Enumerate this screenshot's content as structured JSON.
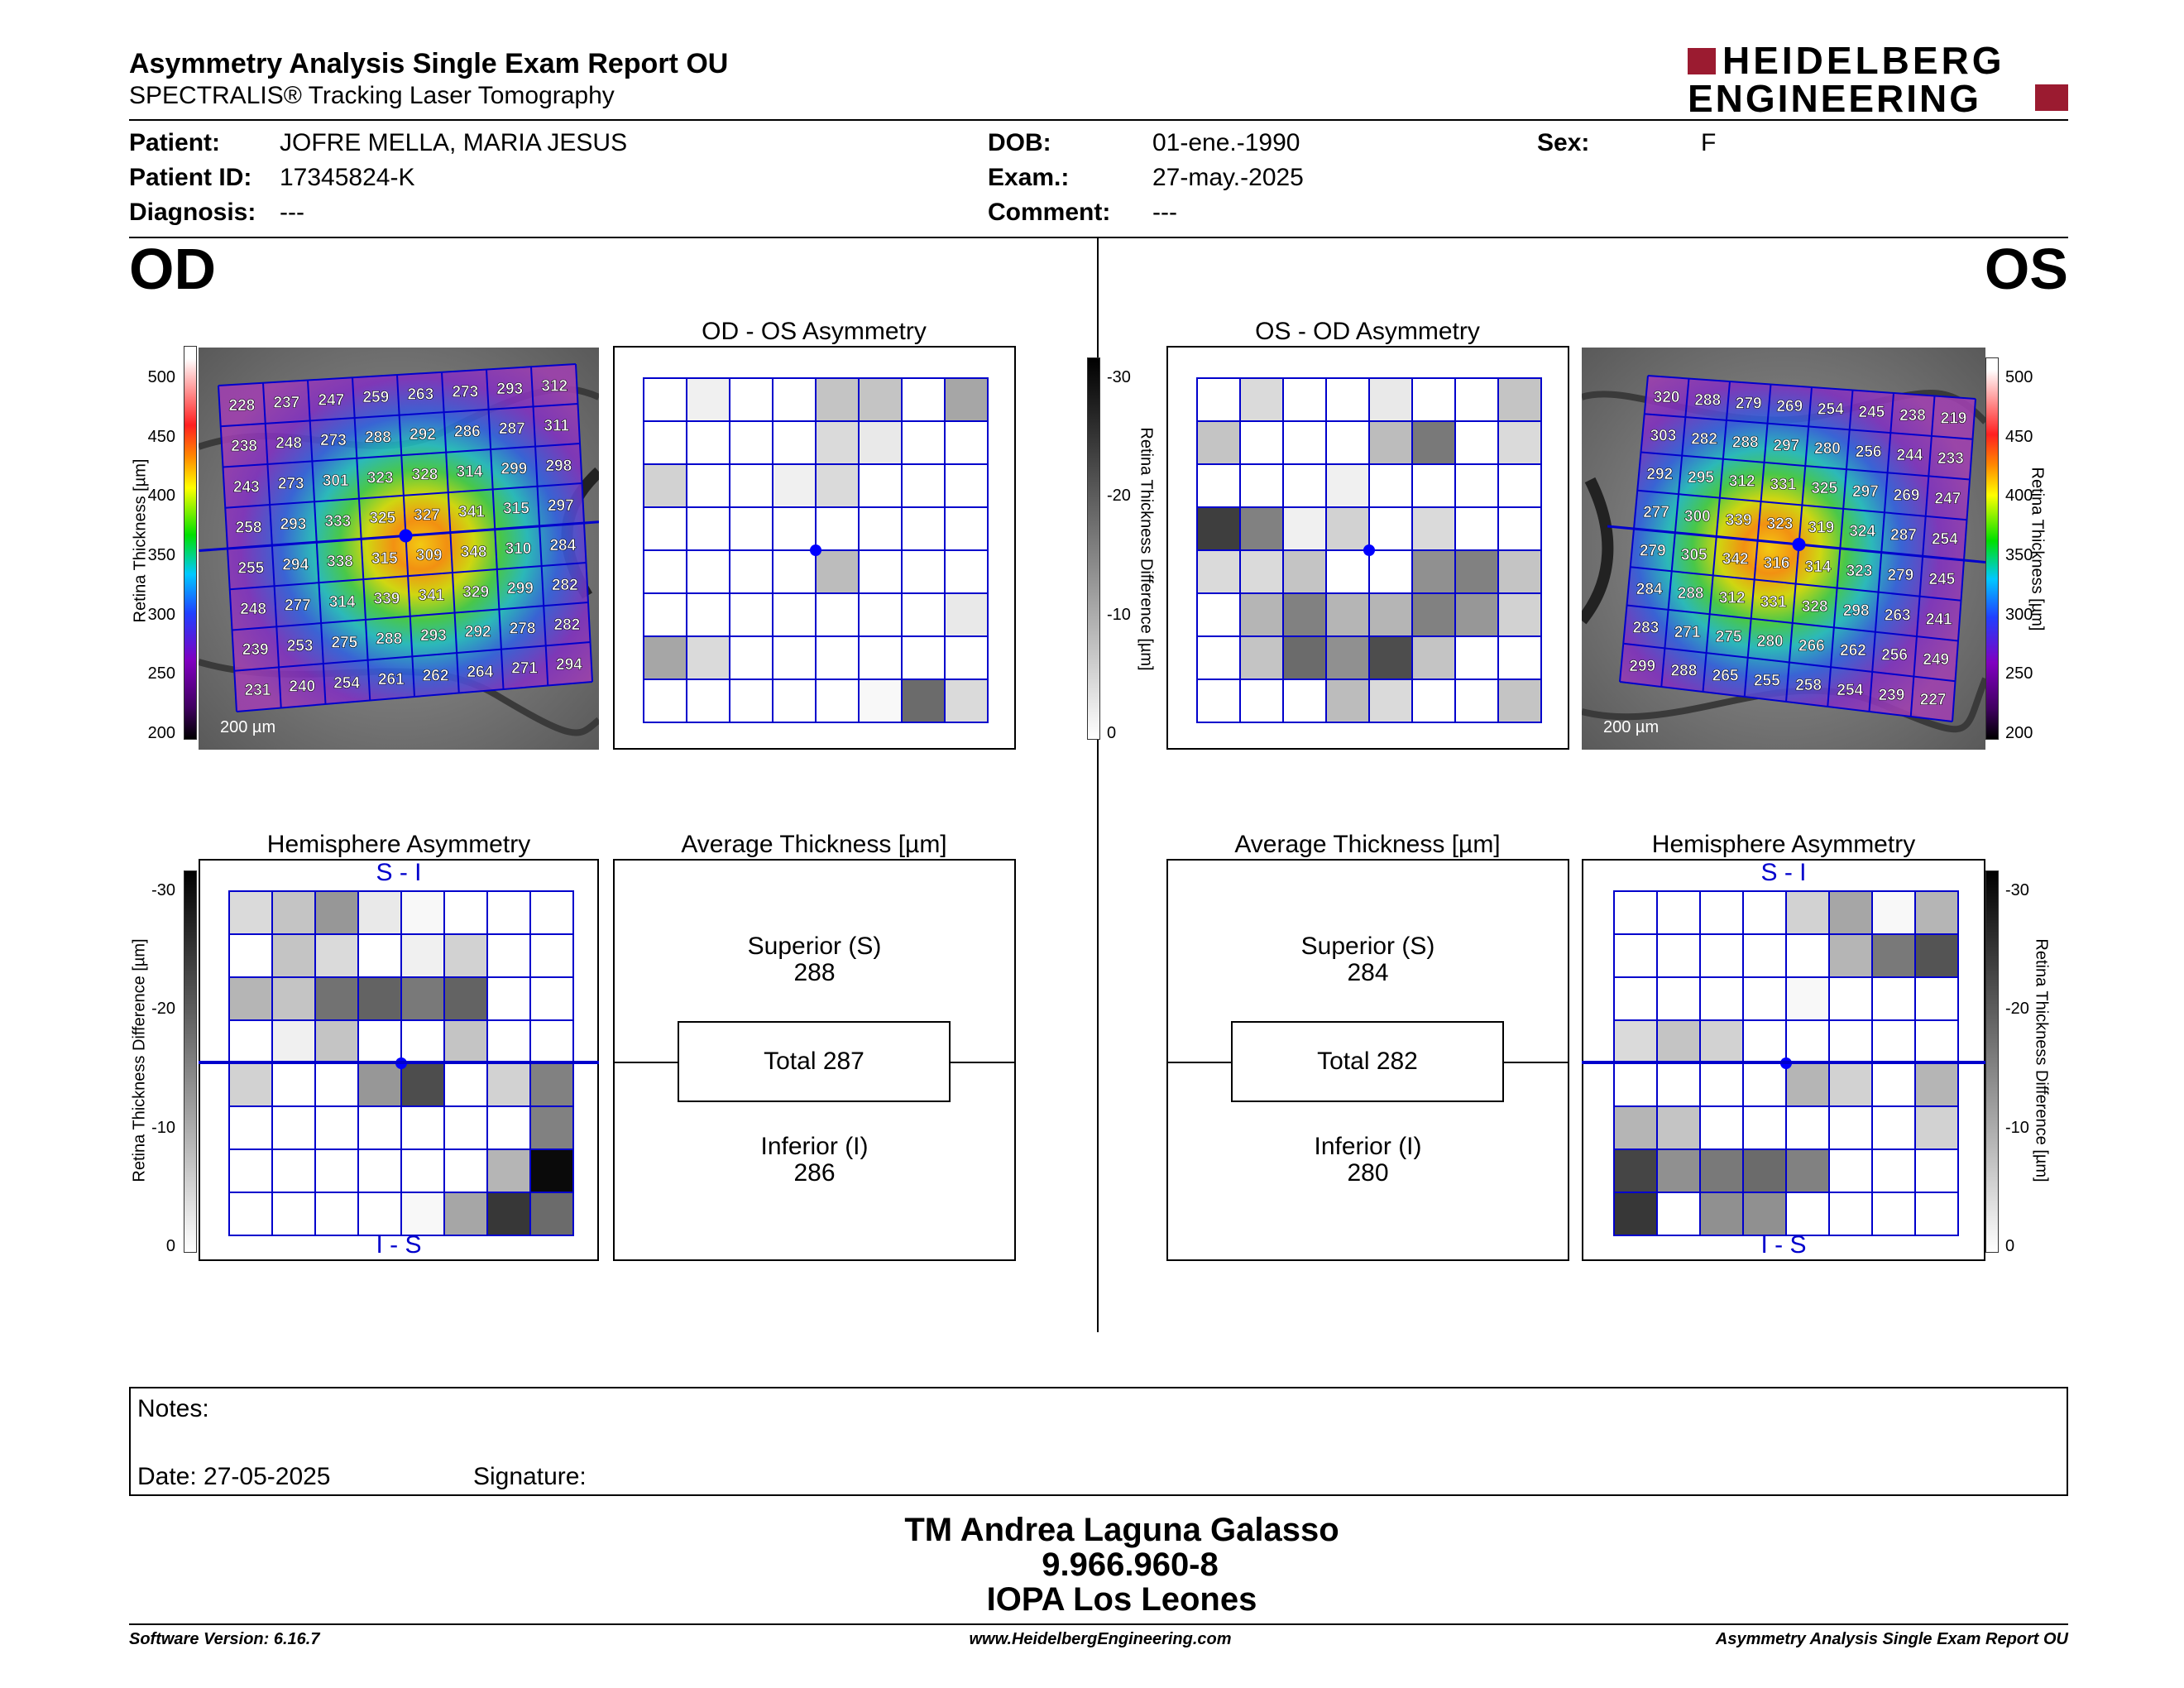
{
  "header": {
    "title": "Asymmetry Analysis Single Exam Report OU",
    "subtitle": "SPECTRALIS® Tracking Laser Tomography",
    "logo_line1": "HEIDELBERG",
    "logo_line2": "ENGINEERING",
    "logo_color": "#9b1b30"
  },
  "patient": {
    "patient_label": "Patient:",
    "patient_value": "JOFRE MELLA, MARIA JESUS",
    "id_label": "Patient ID:",
    "id_value": "17345824-K",
    "diagnosis_label": "Diagnosis:",
    "diagnosis_value": "---",
    "dob_label": "DOB:",
    "dob_value": "01-ene.-1990",
    "exam_label": "Exam.:",
    "exam_value": "27-may.-2025",
    "comment_label": "Comment:",
    "comment_value": "---",
    "sex_label": "Sex:",
    "sex_value": "F"
  },
  "od": {
    "eye_label": "OD",
    "asym_title": "OD - OS Asymmetry",
    "hemi_title": "Hemisphere Asymmetry",
    "avg_title": "Average Thickness [µm]",
    "superior_label": "Superior (S)",
    "superior_value": "288",
    "total_label": "Total 287",
    "inferior_label": "Inferior (I)",
    "inferior_value": "286",
    "scale_label": "200 µm",
    "thickness_grid": [
      [
        228,
        237,
        247,
        259,
        263,
        273,
        293,
        312
      ],
      [
        238,
        248,
        273,
        288,
        292,
        286,
        287,
        311
      ],
      [
        243,
        273,
        301,
        323,
        328,
        314,
        299,
        298
      ],
      [
        258,
        293,
        333,
        325,
        327,
        341,
        315,
        297
      ],
      [
        255,
        294,
        338,
        315,
        309,
        348,
        310,
        284
      ],
      [
        248,
        277,
        314,
        339,
        341,
        329,
        299,
        282
      ],
      [
        239,
        253,
        275,
        288,
        293,
        292,
        278,
        282
      ],
      [
        231,
        240,
        254,
        261,
        262,
        264,
        271,
        294
      ]
    ],
    "asym_grid": [
      [
        0,
        2,
        0,
        0,
        8,
        8,
        0,
        12
      ],
      [
        0,
        0,
        0,
        0,
        5,
        3,
        0,
        0
      ],
      [
        6,
        0,
        0,
        2,
        5,
        0,
        0,
        0
      ],
      [
        0,
        0,
        0,
        0,
        0,
        0,
        0,
        0
      ],
      [
        0,
        0,
        0,
        0,
        9,
        0,
        0,
        0
      ],
      [
        0,
        0,
        0,
        0,
        0,
        0,
        0,
        3
      ],
      [
        12,
        5,
        0,
        0,
        0,
        0,
        0,
        0
      ],
      [
        0,
        0,
        0,
        0,
        0,
        1,
        20,
        5
      ]
    ],
    "hemi_grid": [
      [
        5,
        8,
        14,
        3,
        1,
        0,
        0,
        0
      ],
      [
        0,
        8,
        5,
        0,
        2,
        6,
        0,
        0
      ],
      [
        10,
        8,
        19,
        21,
        18,
        21,
        0,
        0
      ],
      [
        0,
        2,
        8,
        0,
        0,
        8,
        0,
        0
      ],
      [
        6,
        0,
        0,
        14,
        24,
        0,
        6,
        17
      ],
      [
        0,
        0,
        0,
        0,
        0,
        0,
        0,
        17
      ],
      [
        0,
        0,
        0,
        0,
        0,
        0,
        10,
        33
      ],
      [
        0,
        0,
        0,
        0,
        1,
        12,
        27,
        20
      ]
    ],
    "hemi_top_label": "S - I",
    "hemi_bottom_label": "I - S"
  },
  "os": {
    "eye_label": "OS",
    "asym_title": "OS - OD Asymmetry",
    "hemi_title": "Hemisphere Asymmetry",
    "avg_title": "Average Thickness [µm]",
    "superior_label": "Superior (S)",
    "superior_value": "284",
    "total_label": "Total 282",
    "inferior_label": "Inferior (I)",
    "inferior_value": "280",
    "scale_label": "200 µm",
    "thickness_grid": [
      [
        320,
        288,
        279,
        269,
        254,
        245,
        238,
        219
      ],
      [
        303,
        282,
        288,
        297,
        280,
        256,
        244,
        233
      ],
      [
        292,
        295,
        312,
        331,
        325,
        297,
        269,
        247
      ],
      [
        277,
        300,
        339,
        323,
        319,
        324,
        287,
        254
      ],
      [
        279,
        305,
        342,
        316,
        314,
        323,
        279,
        245
      ],
      [
        284,
        288,
        312,
        331,
        328,
        298,
        263,
        241
      ],
      [
        283,
        271,
        275,
        280,
        266,
        262,
        256,
        249
      ],
      [
        299,
        288,
        265,
        255,
        258,
        254,
        239,
        227
      ]
    ],
    "asym_grid": [
      [
        0,
        5,
        0,
        0,
        3,
        0,
        0,
        8
      ],
      [
        8,
        0,
        0,
        0,
        9,
        18,
        0,
        5
      ],
      [
        0,
        0,
        0,
        2,
        0,
        0,
        0,
        0
      ],
      [
        26,
        17,
        2,
        6,
        0,
        5,
        0,
        0
      ],
      [
        5,
        5,
        8,
        0,
        0,
        15,
        17,
        8
      ],
      [
        0,
        10,
        17,
        10,
        10,
        17,
        14,
        6
      ],
      [
        0,
        8,
        20,
        15,
        24,
        8,
        0,
        0
      ],
      [
        0,
        0,
        0,
        9,
        5,
        0,
        0,
        8
      ]
    ],
    "hemi_grid": [
      [
        0,
        0,
        0,
        0,
        6,
        12,
        1,
        10
      ],
      [
        0,
        0,
        0,
        0,
        0,
        10,
        18,
        23
      ],
      [
        0,
        0,
        0,
        0,
        1,
        0,
        0,
        0
      ],
      [
        5,
        8,
        6,
        0,
        0,
        0,
        0,
        0
      ],
      [
        0,
        0,
        0,
        0,
        10,
        6,
        0,
        10
      ],
      [
        10,
        8,
        0,
        0,
        0,
        0,
        0,
        6
      ],
      [
        25,
        15,
        18,
        20,
        17,
        0,
        0,
        0
      ],
      [
        27,
        0,
        15,
        15,
        0,
        0,
        0,
        0
      ]
    ],
    "hemi_top_label": "S - I",
    "hemi_bottom_label": "I - S"
  },
  "thickness_scale": {
    "label": "Retina Thickness [µm]",
    "ticks": [
      "500",
      "450",
      "400",
      "350",
      "300",
      "250",
      "200"
    ]
  },
  "difference_scale": {
    "label": "Retina Thickness Difference [µm]",
    "ticks": [
      "-30",
      "-20",
      "-10",
      "0"
    ]
  },
  "notes": {
    "notes_label": "Notes:",
    "date_label": "Date: 27-05-2025",
    "signature_label": "Signature:"
  },
  "stamp": {
    "line1": "TM Andrea Laguna Galasso",
    "line2": "9.966.960-8",
    "line3": "IOPA Los Leones"
  },
  "footer": {
    "left": "Software Version: 6.16.7",
    "center": "www.HeidelbergEngineering.com",
    "right": "Asymmetry Analysis Single Exam Report OU"
  },
  "colors": {
    "grid_line": "#0000cc",
    "fovea_dot": "#0000ff"
  }
}
